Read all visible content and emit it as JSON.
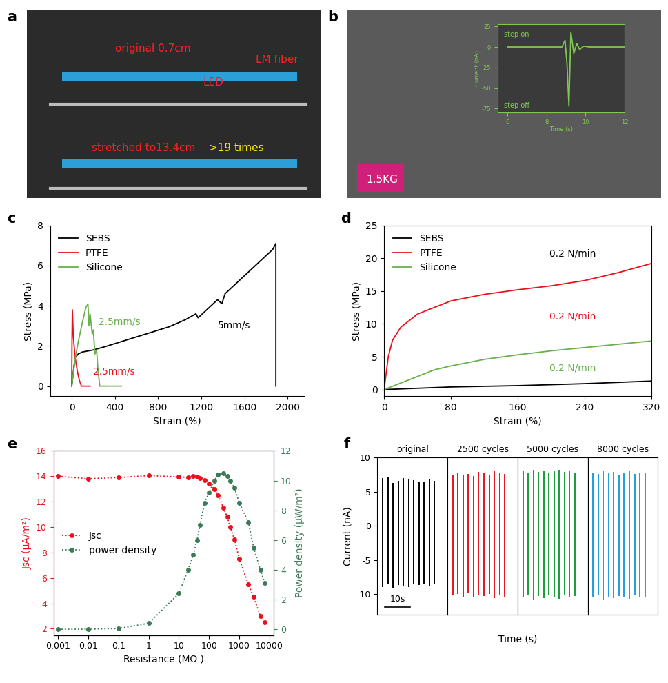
{
  "photos": [
    {
      "label": "a",
      "texts": [
        {
          "text": "original 0.7cm",
          "color": "#ff2020"
        },
        {
          "text": "LED",
          "color": "#ff2020"
        },
        {
          "text": "LM fiber",
          "color": "#ff2020"
        },
        {
          "text": "stretched to13.4cm",
          "color": "#ff2020"
        },
        {
          "text": ">19 times",
          "color": "#ffee00"
        }
      ]
    },
    {
      "label": "b",
      "texts": [
        {
          "text": "1.5KG",
          "color": "#ffffff"
        }
      ]
    }
  ],
  "chart_data": [
    {
      "type": "line",
      "xlabel": "Time (s)",
      "ylabel": "Current (nA)",
      "xlim": [
        5.5,
        12
      ],
      "xticks": [
        6,
        8,
        10,
        12
      ],
      "ylim": [
        -80,
        28
      ],
      "yticks": [
        -75,
        -50,
        -25,
        0,
        25
      ],
      "notes": [
        "step on",
        "step off"
      ],
      "series": [
        {
          "color": "#7ec850",
          "x": [
            6,
            8.8,
            8.95,
            9.05,
            9.15,
            9.25,
            9.4,
            9.55,
            9.7,
            9.9,
            10.2,
            12
          ],
          "values": [
            0,
            0,
            8,
            -20,
            -72,
            18,
            -8,
            4,
            -3,
            1,
            0,
            0
          ]
        }
      ]
    },
    {
      "type": "line",
      "label": "c",
      "xlabel": "Strain (%)",
      "ylabel": "Stress (MPa)",
      "xlim": [
        -200,
        2150
      ],
      "xticks": [
        0,
        400,
        800,
        1200,
        1600,
        2000
      ],
      "ylim": [
        -0.5,
        8
      ],
      "yticks": [
        0,
        2,
        4,
        6,
        8
      ],
      "legend": "upper left",
      "series": [
        {
          "name": "SEBS",
          "color": "#000000",
          "note": "5mm/s",
          "x": [
            0,
            30,
            60,
            100,
            200,
            300,
            450,
            600,
            750,
            900,
            1050,
            1150,
            1170,
            1250,
            1350,
            1390,
            1420,
            1500,
            1600,
            1700,
            1800,
            1860,
            1890,
            1890
          ],
          "values": [
            0,
            1.4,
            1.6,
            1.7,
            1.8,
            1.95,
            2.2,
            2.45,
            2.7,
            2.95,
            3.3,
            3.6,
            3.4,
            3.8,
            4.3,
            4.1,
            4.6,
            5.0,
            5.5,
            6.0,
            6.5,
            6.8,
            7.1,
            0
          ]
        },
        {
          "name": "PTFE",
          "color": "#e8121e",
          "note": "2.5mm/s",
          "x": [
            0,
            3,
            6,
            15,
            30,
            50,
            70,
            90,
            170
          ],
          "values": [
            0,
            2.5,
            3.8,
            2.5,
            1.5,
            0.8,
            0.3,
            0,
            0
          ]
        },
        {
          "name": "Silicone",
          "color": "#6ab04c",
          "note": "2.5mm/s",
          "x": [
            0,
            30,
            60,
            100,
            130,
            150,
            160,
            170,
            190,
            200,
            215,
            230,
            245,
            260,
            460
          ],
          "values": [
            0,
            1.3,
            2.2,
            3.2,
            3.9,
            4.1,
            3.0,
            3.6,
            2.6,
            2.8,
            1.6,
            1.8,
            0.7,
            0,
            0
          ]
        }
      ]
    },
    {
      "type": "line",
      "label": "d",
      "xlabel": "Strain (%)",
      "ylabel": "Stress (MPa)",
      "xlim": [
        0,
        320
      ],
      "xticks": [
        0,
        80,
        160,
        240,
        320
      ],
      "ylim": [
        -1,
        25
      ],
      "yticks": [
        0,
        5,
        10,
        15,
        20,
        25
      ],
      "legend": "upper left",
      "series": [
        {
          "name": "SEBS",
          "color": "#000000",
          "note": "0.2 N/min",
          "x": [
            0,
            80,
            160,
            240,
            320
          ],
          "values": [
            0,
            0.4,
            0.6,
            0.9,
            1.3
          ]
        },
        {
          "name": "PTFE",
          "color": "#e8121e",
          "note": "0.2 N/min",
          "x": [
            0,
            5,
            10,
            20,
            40,
            80,
            120,
            160,
            200,
            240,
            280,
            320
          ],
          "values": [
            0,
            5,
            7.5,
            9.5,
            11.5,
            13.5,
            14.5,
            15.2,
            15.8,
            16.6,
            17.8,
            19.2
          ]
        },
        {
          "name": "Silicone",
          "color": "#6ab04c",
          "note": "0.2 N/min",
          "x": [
            0,
            40,
            60,
            80,
            120,
            160,
            200,
            240,
            280,
            320
          ],
          "values": [
            0,
            2,
            3,
            3.6,
            4.6,
            5.3,
            5.9,
            6.4,
            6.9,
            7.4
          ]
        }
      ]
    },
    {
      "type": "line",
      "label": "e",
      "log": "x",
      "xlabel": "Resistance (MΩ )",
      "ylabel": "Jsc (μA/m²)",
      "y2label": "Power density (μW/m²)",
      "xlim": [
        0.0007,
        14000
      ],
      "xticks": [
        0.001,
        0.01,
        0.1,
        1,
        10,
        100,
        1000,
        10000
      ],
      "ylim": [
        1.5,
        16
      ],
      "yticks": [
        2,
        4,
        6,
        8,
        10,
        12,
        14,
        16
      ],
      "y2lim": [
        -0.4,
        12
      ],
      "y2ticks": [
        0,
        2,
        4,
        6,
        8,
        10,
        12
      ],
      "legend": "center left",
      "series": [
        {
          "name": "Jsc",
          "color": "#e8121e",
          "marker": "o",
          "line_style": "dotted",
          "x": [
            0.001,
            0.01,
            0.1,
            1,
            10,
            20,
            30,
            40,
            50,
            70,
            100,
            150,
            200,
            300,
            400,
            500,
            700,
            1000,
            2000,
            3000,
            5000,
            7000
          ],
          "values": [
            14.0,
            13.8,
            13.9,
            14.05,
            13.95,
            13.9,
            14.0,
            13.95,
            13.85,
            13.7,
            13.4,
            13.0,
            12.5,
            11.5,
            10.8,
            10.0,
            9.0,
            7.5,
            5.5,
            4.5,
            3.0,
            2.5
          ]
        },
        {
          "name": "power density",
          "color": "#3d7a57",
          "marker": "o",
          "line_style": "dotted",
          "axis": "y2",
          "x": [
            0.001,
            0.01,
            0.1,
            1,
            10,
            20,
            30,
            40,
            50,
            70,
            100,
            150,
            200,
            300,
            400,
            500,
            700,
            1000,
            2000,
            3000,
            5000,
            7000
          ],
          "values": [
            0,
            0,
            0.05,
            0.4,
            2.4,
            4.0,
            5.0,
            6.0,
            7.0,
            8.5,
            9.2,
            10.0,
            10.4,
            10.5,
            10.3,
            10.0,
            9.5,
            8.5,
            7.2,
            5.5,
            4.0,
            3.1
          ]
        }
      ]
    },
    {
      "type": "spike",
      "label": "f",
      "xlabel": "Time (s)",
      "ylabel": "Current (nA)",
      "xlim": [
        0,
        27
      ],
      "ylim": [
        -13,
        10
      ],
      "yticks": [
        -10,
        -5,
        0,
        5,
        10
      ],
      "tick_labels": "y",
      "scale_bar": {
        "value": 10,
        "label": "10s"
      },
      "series": [
        {
          "name": "original",
          "color": "#000000",
          "x": [
            2,
            4,
            6,
            8,
            10,
            12,
            14,
            16,
            18,
            20,
            22
          ],
          "peaks": [
            7.0,
            7.2,
            6.3,
            6.6,
            7.0,
            6.8,
            6.7,
            6.5,
            6.4,
            6.8,
            6.6
          ],
          "troughs": [
            -9.0,
            -8.5,
            -9.2,
            -8.7,
            -8.8,
            -9.0,
            -8.6,
            -8.7,
            -8.5,
            -8.8,
            -8.6
          ]
        },
        {
          "name": "2500 cycles",
          "color": "#e8121e",
          "x": [
            2,
            4,
            6,
            8,
            10,
            12,
            14,
            16,
            18,
            20,
            22
          ],
          "peaks": [
            7.5,
            7.8,
            7.4,
            7.6,
            7.3,
            7.9,
            7.7,
            7.5,
            8.0,
            7.8,
            7.6
          ],
          "troughs": [
            -10.2,
            -10.0,
            -10.4,
            -9.8,
            -10.5,
            -10.1,
            -10.3,
            -10.0,
            -10.6,
            -10.2,
            -10.4
          ]
        },
        {
          "name": "5000 cycles",
          "color": "#1a9a3a",
          "x": [
            2,
            4,
            6,
            8,
            10,
            12,
            14,
            16,
            18,
            20,
            22
          ],
          "peaks": [
            8.0,
            7.8,
            8.2,
            7.9,
            8.1,
            7.7,
            8.0,
            8.2,
            7.9,
            8.0,
            7.8
          ],
          "troughs": [
            -10.4,
            -10.2,
            -10.8,
            -10.3,
            -10.6,
            -10.1,
            -10.5,
            -10.7,
            -10.2,
            -10.4,
            -10.3
          ]
        },
        {
          "name": "8000 cycles",
          "color": "#1f9fd8",
          "x": [
            2,
            4,
            6,
            8,
            10,
            12,
            14,
            16,
            18,
            20,
            22
          ],
          "peaks": [
            7.8,
            7.6,
            8.0,
            7.7,
            7.9,
            7.5,
            7.8,
            8.0,
            7.6,
            7.8,
            7.7
          ],
          "troughs": [
            -10.5,
            -10.2,
            -10.8,
            -10.4,
            -10.6,
            -10.3,
            -10.5,
            -10.7,
            -10.2,
            -10.5,
            -10.4
          ]
        }
      ]
    }
  ]
}
